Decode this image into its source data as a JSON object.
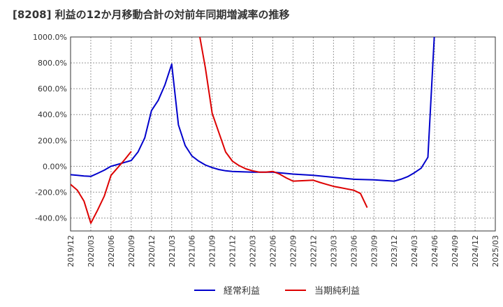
{
  "title": "[8208]  利益の12か月移動合計の対前年同期増減率の推移",
  "chart_data": {
    "type": "line",
    "title": "[8208]  利益の12か月移動合計の対前年同期増減率の推移",
    "xlabel": "",
    "ylabel": "",
    "ylim": [
      -500,
      1000
    ],
    "y_ticks": [
      1000,
      800,
      600,
      400,
      200,
      0,
      -200,
      -400
    ],
    "y_tick_labels": [
      "1000.0%",
      "800.0%",
      "600.0%",
      "400.0%",
      "200.0%",
      "0.00%",
      "-200.0%",
      "-400.0%"
    ],
    "x_tick_labels": [
      "2019/12",
      "2020/03",
      "2020/06",
      "2020/09",
      "2020/12",
      "2021/03",
      "2021/06",
      "2021/09",
      "2021/12",
      "2022/03",
      "2022/06",
      "2022/09",
      "2022/12",
      "2023/03",
      "2023/06",
      "2023/09",
      "2023/12",
      "2024/03",
      "2024/06",
      "2024/09",
      "2024/12",
      "2025/03"
    ],
    "x_start": "2019/12",
    "x_end": "2025/03",
    "grid": true,
    "legend_position": "bottom",
    "series": [
      {
        "name": "経常利益",
        "color": "#0000cc",
        "points": [
          [
            "2019/12",
            -65
          ],
          [
            "2020/01",
            -70
          ],
          [
            "2020/02",
            -75
          ],
          [
            "2020/03",
            -78
          ],
          [
            "2020/04",
            -55
          ],
          [
            "2020/05",
            -30
          ],
          [
            "2020/06",
            0
          ],
          [
            "2020/07",
            15
          ],
          [
            "2020/08",
            30
          ],
          [
            "2020/09",
            45
          ],
          [
            "2020/10",
            110
          ],
          [
            "2020/11",
            220
          ],
          [
            "2020/12",
            430
          ],
          [
            "2021/01",
            510
          ],
          [
            "2021/02",
            630
          ],
          [
            "2021/03",
            790
          ],
          [
            "2021/04",
            320
          ],
          [
            "2021/05",
            160
          ],
          [
            "2021/06",
            80
          ],
          [
            "2021/07",
            40
          ],
          [
            "2021/08",
            10
          ],
          [
            "2021/09",
            -10
          ],
          [
            "2021/10",
            -25
          ],
          [
            "2021/11",
            -35
          ],
          [
            "2021/12",
            -40
          ],
          [
            "2022/03",
            -45
          ],
          [
            "2022/06",
            -45
          ],
          [
            "2022/09",
            -60
          ],
          [
            "2022/12",
            -70
          ],
          [
            "2023/03",
            -85
          ],
          [
            "2023/06",
            -100
          ],
          [
            "2023/09",
            -105
          ],
          [
            "2023/12",
            -115
          ],
          [
            "2024/01",
            -100
          ],
          [
            "2024/02",
            -80
          ],
          [
            "2024/03",
            -50
          ],
          [
            "2024/04",
            -15
          ],
          [
            "2024/05",
            70
          ],
          [
            "2024/06",
            1050
          ]
        ]
      },
      {
        "name": "当期純利益",
        "color": "#dd0000",
        "points": [
          [
            "2019/12",
            -140
          ],
          [
            "2020/01",
            -185
          ],
          [
            "2020/02",
            -270
          ],
          [
            "2020/03",
            -440
          ],
          [
            "2020/04",
            -340
          ],
          [
            "2020/05",
            -230
          ],
          [
            "2020/06",
            -70
          ],
          [
            "2020/07",
            -10
          ],
          [
            "2020/08",
            50
          ],
          [
            "2020/09",
            115
          ],
          null,
          [
            "2021/07",
            1050
          ],
          [
            "2021/08",
            760
          ],
          [
            "2021/09",
            410
          ],
          [
            "2021/10",
            260
          ],
          [
            "2021/11",
            110
          ],
          [
            "2021/12",
            40
          ],
          [
            "2022/01",
            5
          ],
          [
            "2022/02",
            -20
          ],
          [
            "2022/03",
            -35
          ],
          [
            "2022/04",
            -45
          ],
          [
            "2022/05",
            -45
          ],
          [
            "2022/06",
            -40
          ],
          [
            "2022/07",
            -60
          ],
          [
            "2022/08",
            -90
          ],
          [
            "2022/09",
            -115
          ],
          [
            "2022/12",
            -108
          ],
          [
            "2023/01",
            -125
          ],
          [
            "2023/02",
            -140
          ],
          [
            "2023/03",
            -155
          ],
          [
            "2023/04",
            -165
          ],
          [
            "2023/05",
            -175
          ],
          [
            "2023/06",
            -185
          ],
          [
            "2023/07",
            -210
          ],
          [
            "2023/08",
            -320
          ]
        ]
      }
    ]
  }
}
